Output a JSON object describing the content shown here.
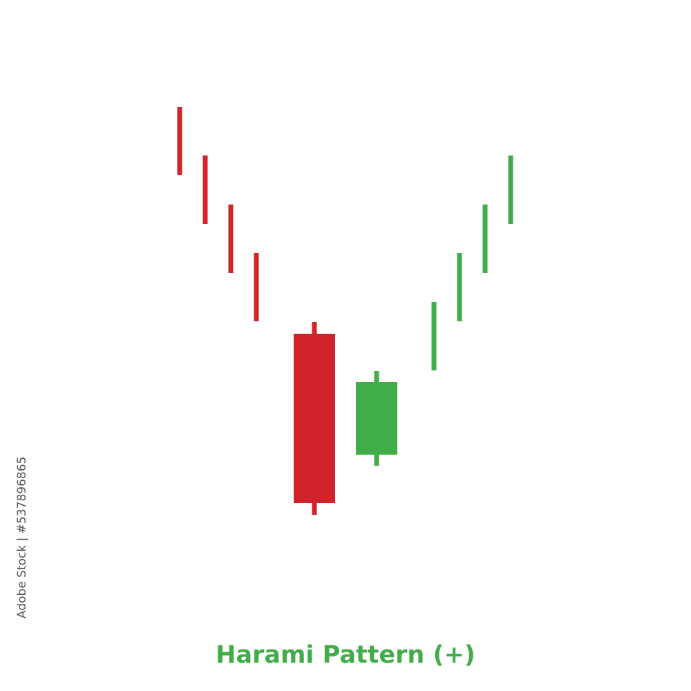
{
  "chart_data": {
    "type": "candlestick",
    "title": "Harami Pattern (+)",
    "colors": {
      "bearish": "#d2232a",
      "bullish": "#41ad49"
    },
    "candles": [
      {
        "open": 84.5,
        "high": 84.5,
        "low": 74.7,
        "close": 74.7
      },
      {
        "open": 77.5,
        "high": 77.5,
        "low": 67.6,
        "close": 67.6
      },
      {
        "open": 70.4,
        "high": 70.4,
        "low": 60.5,
        "close": 60.5
      },
      {
        "open": 63.4,
        "high": 63.4,
        "low": 53.5,
        "close": 53.5
      },
      {
        "open": 51.7,
        "high": 53.4,
        "low": 25.5,
        "close": 27.2
      },
      {
        "open": 34.2,
        "high": 46.3,
        "low": 32.6,
        "close": 44.7
      },
      {
        "open": 46.4,
        "high": 56.3,
        "low": 46.4,
        "close": 56.3
      },
      {
        "open": 53.5,
        "high": 63.4,
        "low": 53.5,
        "close": 63.4
      },
      {
        "open": 60.5,
        "high": 70.4,
        "low": 60.5,
        "close": 70.4
      },
      {
        "open": 67.6,
        "high": 77.5,
        "low": 67.6,
        "close": 77.5
      }
    ]
  },
  "watermark": {
    "credit": "Adobe Stock | #537896865",
    "text": "Adobe Stock"
  }
}
